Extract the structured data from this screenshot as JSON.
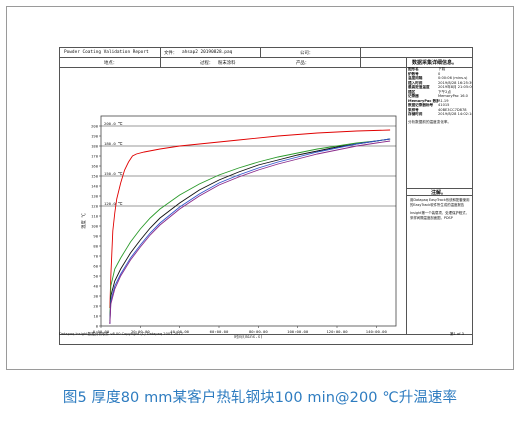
{
  "header": {
    "report_title": "Powder Coating Validation Report",
    "file_label": "文件：",
    "file_value": "ahsap2 20190828.paq",
    "company_label": "公司：",
    "location_label": "地点：",
    "process_label": "过程：",
    "process_value": "粉末涂料",
    "product_label": "产品："
  },
  "info_panel": {
    "title": "数据采集详细信息。",
    "rows": [
      {
        "k": "图形名",
        "v": "下载"
      },
      {
        "k": "炉数号",
        "v": "0"
      },
      {
        "k": "温度间隔",
        "v": "0:00:06 (mins.s)"
      },
      {
        "k": "插入时间",
        "v": "2019/8/28 16:25:39"
      },
      {
        "k": "最高定值温度",
        "v": "2019年8月 21:05:00"
      },
      {
        "k": "插区",
        "v": "下午2点"
      },
      {
        "k": "记录器",
        "v": "MemoryPac 16.0"
      },
      {
        "k": "MemoryPac 数据",
        "v": "R1.19"
      },
      {
        "k": "数据记录器标号",
        "v": "41015"
      },
      {
        "k": "采样号",
        "v": "40BE3CC7D878"
      },
      {
        "k": "存储时间",
        "v": "2019/8/28 14:02:14"
      }
    ],
    "note": "分析数据前的温度变化率。"
  },
  "notes_panel": {
    "title": "注解。",
    "line1": "用Datapaq EasyTrack系统和配套使用的EasyTrack软件所生成的温度报告",
    "line2": "Insight第一个装载项，处理保护程式，采样间隔温度剖面图，PDSP"
  },
  "footer": {
    "left": "Datapaq Insight数据分析软件 v8.00   Copyright (C) Datapaq 2003-2017",
    "right": "第1 of 3"
  },
  "caption": "图5 厚度80 mm某客户热轧钢块100 min@200 ℃升温速率",
  "chart_data": {
    "type": "line",
    "xlabel": "时间(mins.s)",
    "ylabel": "温度 ℃",
    "xlim": [
      0,
      150
    ],
    "ylim": [
      0,
      210
    ],
    "xticks": [
      0,
      20,
      40,
      60,
      80,
      100,
      120,
      140
    ],
    "xtick_labels": [
      "0:00.00",
      "20:00.00",
      "40:00.00",
      "60:00.00",
      "80:00.00",
      "100:00.00",
      "120:00.00",
      "140:00.00"
    ],
    "yticks": [
      0,
      10,
      20,
      30,
      40,
      50,
      60,
      70,
      80,
      90,
      100,
      110,
      120,
      130,
      140,
      150,
      160,
      170,
      180,
      190,
      200
    ],
    "reference_lines": [
      {
        "y": 200,
        "label": "200.0 ℃"
      },
      {
        "y": 180,
        "label": "180.0 ℃"
      },
      {
        "y": 150,
        "label": "150.0 ℃"
      },
      {
        "y": 120,
        "label": "120.0 ℃"
      }
    ],
    "series": [
      {
        "color": "#e00000",
        "points": [
          [
            4.5,
            18
          ],
          [
            5,
            50
          ],
          [
            6,
            95
          ],
          [
            7,
            113
          ],
          [
            8,
            127
          ],
          [
            10,
            143
          ],
          [
            12,
            156
          ],
          [
            14,
            164
          ],
          [
            16,
            170
          ],
          [
            18,
            172
          ],
          [
            22,
            174
          ],
          [
            30,
            177
          ],
          [
            40,
            180
          ],
          [
            55,
            183
          ],
          [
            70,
            186
          ],
          [
            90,
            190
          ],
          [
            110,
            193
          ],
          [
            130,
            195
          ],
          [
            147,
            196
          ]
        ]
      },
      {
        "color": "#2a9a2a",
        "points": [
          [
            4.5,
            5
          ],
          [
            5,
            40
          ],
          [
            7,
            57
          ],
          [
            10,
            68
          ],
          [
            15,
            84
          ],
          [
            20,
            97
          ],
          [
            25,
            108
          ],
          [
            30,
            117
          ],
          [
            40,
            131
          ],
          [
            50,
            142
          ],
          [
            60,
            151
          ],
          [
            70,
            158
          ],
          [
            80,
            164
          ],
          [
            90,
            169
          ],
          [
            100,
            173
          ],
          [
            110,
            177
          ],
          [
            120,
            180
          ],
          [
            130,
            183
          ],
          [
            140,
            185
          ],
          [
            147,
            187
          ]
        ]
      },
      {
        "color": "#111111",
        "points": [
          [
            4.5,
            3
          ],
          [
            5,
            30
          ],
          [
            7,
            45
          ],
          [
            10,
            57
          ],
          [
            15,
            73
          ],
          [
            20,
            86
          ],
          [
            25,
            98
          ],
          [
            30,
            108
          ],
          [
            40,
            123
          ],
          [
            50,
            136
          ],
          [
            60,
            146
          ],
          [
            70,
            154
          ],
          [
            80,
            161
          ],
          [
            90,
            166
          ],
          [
            100,
            171
          ],
          [
            110,
            175
          ],
          [
            120,
            179
          ],
          [
            130,
            182
          ],
          [
            140,
            185
          ],
          [
            147,
            187
          ]
        ]
      },
      {
        "color": "#3355cc",
        "points": [
          [
            4.5,
            2
          ],
          [
            5,
            25
          ],
          [
            7,
            40
          ],
          [
            10,
            52
          ],
          [
            15,
            68
          ],
          [
            20,
            81
          ],
          [
            25,
            93
          ],
          [
            30,
            103
          ],
          [
            40,
            119
          ],
          [
            50,
            132
          ],
          [
            60,
            143
          ],
          [
            70,
            151
          ],
          [
            80,
            158
          ],
          [
            90,
            164
          ],
          [
            100,
            169
          ],
          [
            110,
            174
          ],
          [
            120,
            178
          ],
          [
            130,
            182
          ],
          [
            140,
            185
          ],
          [
            147,
            187
          ]
        ]
      },
      {
        "color": "#8a2a8a",
        "points": [
          [
            4.5,
            2
          ],
          [
            5,
            22
          ],
          [
            7,
            37
          ],
          [
            10,
            50
          ],
          [
            15,
            66
          ],
          [
            20,
            79
          ],
          [
            25,
            91
          ],
          [
            30,
            101
          ],
          [
            40,
            117
          ],
          [
            50,
            130
          ],
          [
            60,
            141
          ],
          [
            70,
            149
          ],
          [
            80,
            156
          ],
          [
            90,
            162
          ],
          [
            100,
            167
          ],
          [
            110,
            172
          ],
          [
            120,
            176
          ],
          [
            130,
            180
          ],
          [
            140,
            183
          ],
          [
            147,
            185
          ]
        ]
      }
    ]
  }
}
